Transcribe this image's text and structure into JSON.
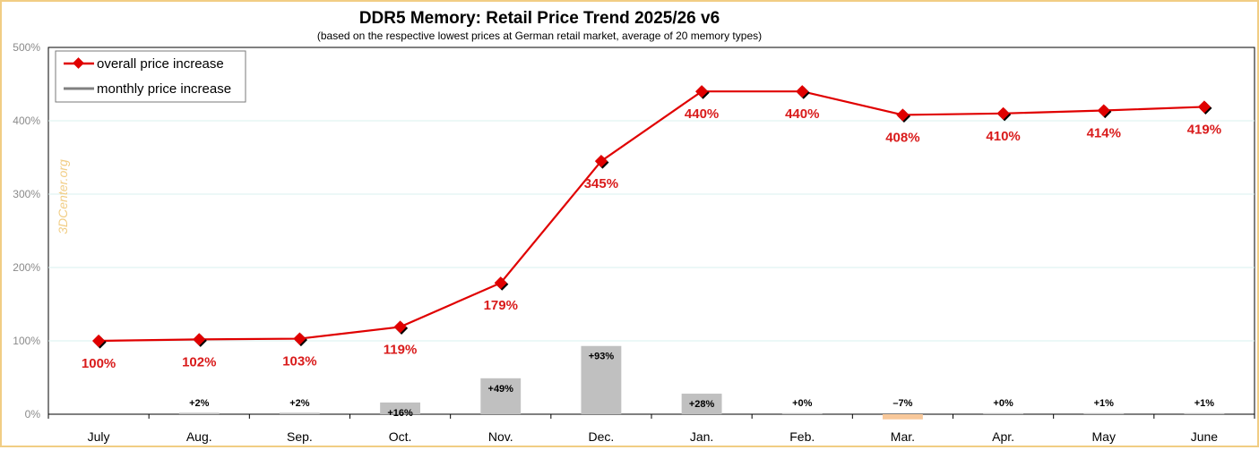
{
  "chart_data": {
    "type": "line",
    "title": "DDR5 Memory: Retail Price Trend 2025/26 v6",
    "subtitle": "(based on the respective lowest prices at German retail market, average of 20 memory types)",
    "watermark": "3DCenter.org",
    "categories": [
      "July",
      "Aug.",
      "Sep.",
      "Oct.",
      "Nov.",
      "Dec.",
      "Jan.",
      "Feb.",
      "Mar.",
      "Apr.",
      "May",
      "June"
    ],
    "ylim": [
      0,
      500
    ],
    "yticks": [
      0,
      100,
      200,
      300,
      400,
      500
    ],
    "ytick_labels": [
      "0%",
      "100%",
      "200%",
      "300%",
      "400%",
      "500%"
    ],
    "grid": true,
    "legend": {
      "placement": "top-left",
      "entries": [
        {
          "label": "overall price increase",
          "color": "#e00000"
        },
        {
          "label": "monthly price increase",
          "color": "#808080"
        }
      ]
    },
    "series": [
      {
        "name": "overall price increase",
        "type": "line",
        "color": "#e00000",
        "values": [
          100,
          102,
          103,
          119,
          179,
          345,
          440,
          440,
          408,
          410,
          414,
          419
        ],
        "labels": [
          "100%",
          "102%",
          "103%",
          "119%",
          "179%",
          "345%",
          "440%",
          "440%",
          "408%",
          "410%",
          "414%",
          "419%"
        ]
      },
      {
        "name": "monthly price increase",
        "type": "bar",
        "color": "#c0c0c0",
        "negative_color": "#f8c89a",
        "values": [
          null,
          2,
          2,
          16,
          49,
          93,
          28,
          0,
          -7,
          0,
          1,
          1
        ],
        "labels": [
          "",
          "+2%",
          "+2%",
          "+16%",
          "+49%",
          "+93%",
          "+28%",
          "+0%",
          "–7%",
          "+0%",
          "+1%",
          "+1%"
        ]
      }
    ]
  }
}
